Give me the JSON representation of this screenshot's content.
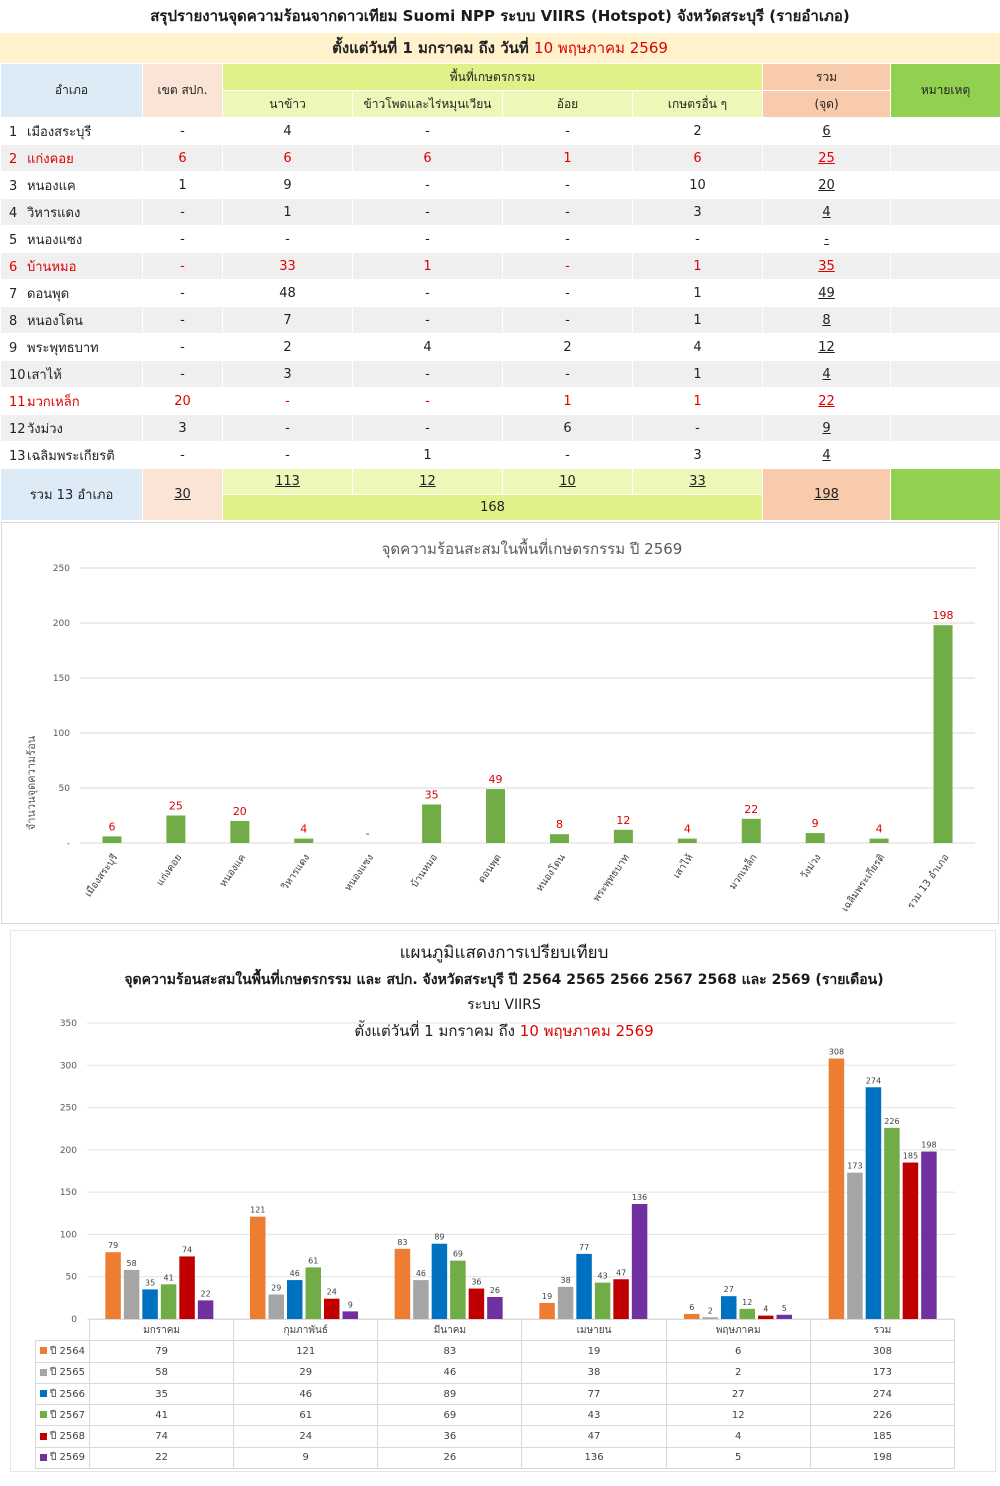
{
  "report": {
    "title": "สรุปรายงานจุดความร้อนจากดาวเทียม Suomi NPP ระบบ VIIRS (Hotspot) จังหวัดสระบุรี (รายอำเภอ)",
    "subtitle_prefix": "ตั้งแต่วันที่ 1 มกราคม  ถึง วันที่",
    "subtitle_date": "10 พฤษภาคม 2569"
  },
  "table": {
    "headers": {
      "district": "อำเภอ",
      "zone": "เขต สปก.",
      "agri": "พื้นที่เกษตรกรรม",
      "rice": "นาข้าว",
      "corn": "ข้าวโพดและไร่หมุนเวียน",
      "sugarcane": "อ้อย",
      "other": "เกษตรอื่น ๆ",
      "total": "รวม",
      "total_unit": "(จุด)",
      "note": "หมายเหตุ"
    },
    "rows": [
      {
        "no": "1",
        "name": "เมืองสระบุรี",
        "zone": "-",
        "rice": "4",
        "corn": "-",
        "sugarcane": "-",
        "other": "2",
        "total": "6"
      },
      {
        "no": "2",
        "name": "แก่งคอย",
        "zone": "6",
        "rice": "6",
        "corn": "6",
        "sugarcane": "1",
        "other": "6",
        "total": "25"
      },
      {
        "no": "3",
        "name": "หนองแค",
        "zone": "1",
        "rice": "9",
        "corn": "-",
        "sugarcane": "-",
        "other": "10",
        "total": "20"
      },
      {
        "no": "4",
        "name": "วิหารแดง",
        "zone": "-",
        "rice": "1",
        "corn": "-",
        "sugarcane": "-",
        "other": "3",
        "total": "4"
      },
      {
        "no": "5",
        "name": "หนองแซง",
        "zone": "-",
        "rice": "-",
        "corn": "-",
        "sugarcane": "-",
        "other": "-",
        "total": "-"
      },
      {
        "no": "6",
        "name": "บ้านหมอ",
        "zone": "-",
        "rice": "33",
        "corn": "1",
        "sugarcane": "-",
        "other": "1",
        "total": "35"
      },
      {
        "no": "7",
        "name": "ดอนพุด",
        "zone": "-",
        "rice": "48",
        "corn": "-",
        "sugarcane": "-",
        "other": "1",
        "total": "49"
      },
      {
        "no": "8",
        "name": "หนองโดน",
        "zone": "-",
        "rice": "7",
        "corn": "-",
        "sugarcane": "-",
        "other": "1",
        "total": "8"
      },
      {
        "no": "9",
        "name": "พระพุทธบาท",
        "zone": "-",
        "rice": "2",
        "corn": "4",
        "sugarcane": "2",
        "other": "4",
        "total": "12"
      },
      {
        "no": "10",
        "name": "เสาไห้",
        "zone": "-",
        "rice": "3",
        "corn": "-",
        "sugarcane": "-",
        "other": "1",
        "total": "4"
      },
      {
        "no": "11",
        "name": "มวกเหล็ก",
        "zone": "20",
        "rice": "-",
        "corn": "-",
        "sugarcane": "1",
        "other": "1",
        "total": "22"
      },
      {
        "no": "12",
        "name": "วังม่วง",
        "zone": "3",
        "rice": "-",
        "corn": "-",
        "sugarcane": "6",
        "other": "-",
        "total": "9"
      },
      {
        "no": "13",
        "name": "เฉลิมพระเกียรติ",
        "zone": "-",
        "rice": "-",
        "corn": "1",
        "sugarcane": "-",
        "other": "3",
        "total": "4"
      }
    ],
    "sum": {
      "label": "รวม 13 อำเภอ",
      "zone": "30",
      "rice": "113",
      "corn": "12",
      "sugarcane": "10",
      "other": "33",
      "agri_total": "168",
      "total": "198"
    }
  },
  "chart_data": [
    {
      "type": "bar",
      "title": "จุดความร้อนสะสมในพื้นที่เกษตรกรรม ปี 2569",
      "ylabel": "จำนวนจุดความร้อน",
      "xlabel": "",
      "ylim": [
        0,
        250
      ],
      "yticks": [
        0,
        50,
        100,
        150,
        200,
        250
      ],
      "ytick_labels": [
        "-",
        "50",
        "100",
        "150",
        "200",
        "250"
      ],
      "grid": true,
      "color": "#70ad47",
      "label_color": "#e00000",
      "categories": [
        "เมืองสระบุรี",
        "แก่งคอย",
        "หนองแค",
        "วิหารแดง",
        "หนองแซง",
        "บ้านหมอ",
        "ดอนพุด",
        "หนองโดน",
        "พระพุทธบาท",
        "เสาไห้",
        "มวกเหล็ก",
        "วังม่วง",
        "เฉลิมพระเกียรติ",
        "รวม 13 อำเภอ"
      ],
      "values": [
        6,
        25,
        20,
        4,
        0,
        35,
        49,
        8,
        12,
        4,
        22,
        9,
        4,
        198
      ],
      "data_labels": [
        "6",
        "25",
        "20",
        "4",
        "-",
        "35",
        "49",
        "8",
        "12",
        "4",
        "22",
        "9",
        "4",
        "198"
      ]
    },
    {
      "type": "bar",
      "title": "แผนภูมิแสดงการเปรียบเทียบ",
      "subtitle": "จุดความร้อนสะสมในพื้นที่เกษตรกรรม  และ สปก. จังหวัดสระบุรี  ปี   2564 2565 2566 2567 2568 และ 2569 (รายเดือน)",
      "subtitle2": "ระบบ VIIRS",
      "subtitle3_prefix": "ตั้งแต่วันที่ 1 มกราคม ถึง",
      "subtitle3_date": "10 พฤษภาคม 2569",
      "ylim": [
        0,
        350
      ],
      "yticks": [
        0,
        50,
        100,
        150,
        200,
        250,
        300,
        350
      ],
      "grid": true,
      "legend": "table-bottom",
      "categories": [
        "มกราคม",
        "กุมภาพันธ์",
        "มีนาคม",
        "เมษายน",
        "พฤษภาคม",
        "รวม"
      ],
      "series": [
        {
          "name": "ปี 2564",
          "color": "#ed7d31",
          "values": [
            79,
            121,
            83,
            19,
            6,
            308
          ]
        },
        {
          "name": "ปี 2565",
          "color": "#a5a5a5",
          "values": [
            58,
            29,
            46,
            38,
            2,
            173
          ]
        },
        {
          "name": "ปี 2566",
          "color": "#0070c0",
          "values": [
            35,
            46,
            89,
            77,
            27,
            274
          ]
        },
        {
          "name": "ปี 2567",
          "color": "#70ad47",
          "values": [
            41,
            61,
            69,
            43,
            12,
            226
          ]
        },
        {
          "name": "ปี 2568",
          "color": "#c00000",
          "values": [
            74,
            24,
            36,
            47,
            4,
            185
          ]
        },
        {
          "name": "ปี 2569",
          "color": "#7030a0",
          "values": [
            22,
            9,
            26,
            136,
            5,
            198
          ]
        }
      ]
    }
  ]
}
